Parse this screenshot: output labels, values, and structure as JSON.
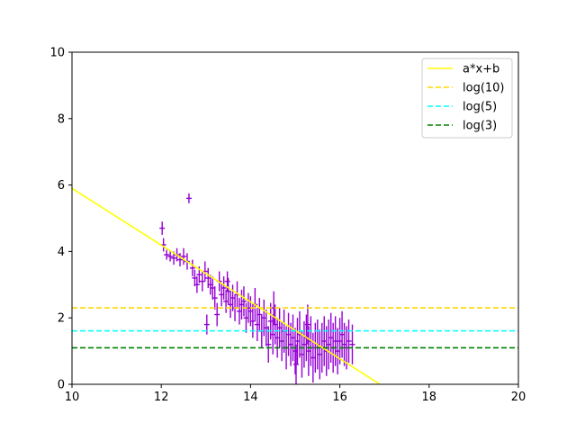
{
  "chart_data": {
    "type": "scatter",
    "title": "",
    "xlabel": "",
    "ylabel": "",
    "xlim": [
      10,
      20
    ],
    "ylim": [
      0,
      10
    ],
    "grid": false,
    "legend_position": "top-right",
    "x_ticks": [
      "10",
      "12",
      "14",
      "16",
      "18",
      "20"
    ],
    "y_ticks": [
      "0",
      "2",
      "4",
      "6",
      "8",
      "10"
    ],
    "series": [
      {
        "name": "a*x+b",
        "kind": "line",
        "color": "#ffff00",
        "style": "solid",
        "x": [
          10.0,
          16.9
        ],
        "y": [
          5.9,
          0.0
        ]
      },
      {
        "name": "log(10)",
        "kind": "hline",
        "color": "#ffd700",
        "style": "dashed",
        "y": 2.303
      },
      {
        "name": "log(5)",
        "kind": "hline",
        "color": "#00ffff",
        "style": "dashed",
        "y": 1.609
      },
      {
        "name": "log(3)",
        "kind": "hline",
        "color": "#008000",
        "style": "dashed",
        "y": 1.099
      }
    ],
    "errorbar_series": {
      "color": "#9400d3",
      "x_err": 0.06,
      "points": [
        [
          12.02,
          4.7,
          0.2
        ],
        [
          12.05,
          4.2,
          0.2
        ],
        [
          12.12,
          3.9,
          0.15
        ],
        [
          12.2,
          3.85,
          0.15
        ],
        [
          12.28,
          3.8,
          0.2
        ],
        [
          12.35,
          3.9,
          0.2
        ],
        [
          12.42,
          3.75,
          0.2
        ],
        [
          12.5,
          3.85,
          0.25
        ],
        [
          12.58,
          3.7,
          0.25
        ],
        [
          12.62,
          5.6,
          0.15
        ],
        [
          12.7,
          3.5,
          0.25
        ],
        [
          12.75,
          3.2,
          0.25
        ],
        [
          12.8,
          3.0,
          0.25
        ],
        [
          12.85,
          3.3,
          0.25
        ],
        [
          12.92,
          3.1,
          0.3
        ],
        [
          12.98,
          3.4,
          0.3
        ],
        [
          13.02,
          1.8,
          0.3
        ],
        [
          13.05,
          3.2,
          0.3
        ],
        [
          13.1,
          3.0,
          0.3
        ],
        [
          13.15,
          2.9,
          0.35
        ],
        [
          13.2,
          2.6,
          0.35
        ],
        [
          13.25,
          2.1,
          0.35
        ],
        [
          13.3,
          3.1,
          0.3
        ],
        [
          13.35,
          2.7,
          0.35
        ],
        [
          13.4,
          2.9,
          0.35
        ],
        [
          13.45,
          2.5,
          0.35
        ],
        [
          13.5,
          2.8,
          0.4
        ],
        [
          13.55,
          2.4,
          0.4
        ],
        [
          13.6,
          2.6,
          0.4
        ],
        [
          13.65,
          2.3,
          0.4
        ],
        [
          13.7,
          2.7,
          0.4
        ],
        [
          13.75,
          2.2,
          0.4
        ],
        [
          13.8,
          2.4,
          0.45
        ],
        [
          13.85,
          2.5,
          0.45
        ],
        [
          13.9,
          2.0,
          0.45
        ],
        [
          13.95,
          2.3,
          0.45
        ],
        [
          14.0,
          2.2,
          0.45
        ],
        [
          14.05,
          1.9,
          0.5
        ],
        [
          14.1,
          2.4,
          0.5
        ],
        [
          14.15,
          1.8,
          0.5
        ],
        [
          14.2,
          2.1,
          0.5
        ],
        [
          14.25,
          1.6,
          0.5
        ],
        [
          14.3,
          2.0,
          0.55
        ],
        [
          14.35,
          1.7,
          0.55
        ],
        [
          14.4,
          1.2,
          0.55
        ],
        [
          14.45,
          1.9,
          0.55
        ],
        [
          14.5,
          1.5,
          0.6
        ],
        [
          14.55,
          1.8,
          0.6
        ],
        [
          14.6,
          1.4,
          0.6
        ],
        [
          14.65,
          1.7,
          0.6
        ],
        [
          14.7,
          1.3,
          0.6
        ],
        [
          14.75,
          1.6,
          0.65
        ],
        [
          14.8,
          1.1,
          0.65
        ],
        [
          14.85,
          1.5,
          0.65
        ],
        [
          14.9,
          1.2,
          0.65
        ],
        [
          14.95,
          1.4,
          0.7
        ],
        [
          15.0,
          1.0,
          0.7
        ],
        [
          15.05,
          1.3,
          0.7
        ],
        [
          15.1,
          1.5,
          0.7
        ],
        [
          15.15,
          0.9,
          0.7
        ],
        [
          15.2,
          1.2,
          0.7
        ],
        [
          15.25,
          1.4,
          0.7
        ],
        [
          15.3,
          1.0,
          0.75
        ],
        [
          15.35,
          1.3,
          0.75
        ],
        [
          15.4,
          0.8,
          0.75
        ],
        [
          15.45,
          1.1,
          0.75
        ],
        [
          15.5,
          1.2,
          0.75
        ],
        [
          15.55,
          0.9,
          0.75
        ],
        [
          15.6,
          1.1,
          0.75
        ],
        [
          15.65,
          1.3,
          0.75
        ],
        [
          15.7,
          1.0,
          0.75
        ],
        [
          15.75,
          1.2,
          0.75
        ],
        [
          15.8,
          1.4,
          0.75
        ],
        [
          15.85,
          1.1,
          0.75
        ],
        [
          15.9,
          1.3,
          0.75
        ],
        [
          15.95,
          1.0,
          0.7
        ],
        [
          16.0,
          1.3,
          0.7
        ],
        [
          16.05,
          1.5,
          0.7
        ],
        [
          16.1,
          1.2,
          0.65
        ],
        [
          16.15,
          1.1,
          0.65
        ],
        [
          16.2,
          1.3,
          0.65
        ],
        [
          16.28,
          1.2,
          0.6
        ],
        [
          15.02,
          0.6,
          0.6
        ],
        [
          14.52,
          2.3,
          0.5
        ],
        [
          13.48,
          3.1,
          0.3
        ],
        [
          15.28,
          1.8,
          0.6
        ]
      ]
    }
  }
}
